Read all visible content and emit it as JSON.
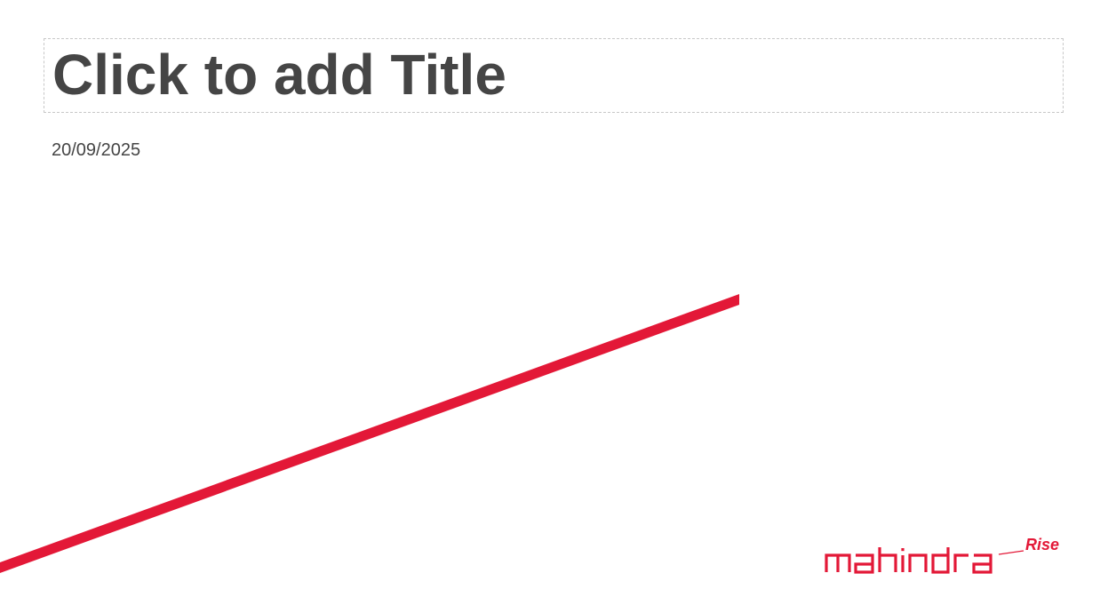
{
  "slide": {
    "title_placeholder": "Click to add Title",
    "date": "20/09/2025"
  },
  "brand": {
    "name": "mahindra",
    "tagline": "Rise",
    "color": "#e31837"
  },
  "colors": {
    "text": "#454545",
    "placeholder_border": "#c8c8c8",
    "background": "#ffffff"
  }
}
